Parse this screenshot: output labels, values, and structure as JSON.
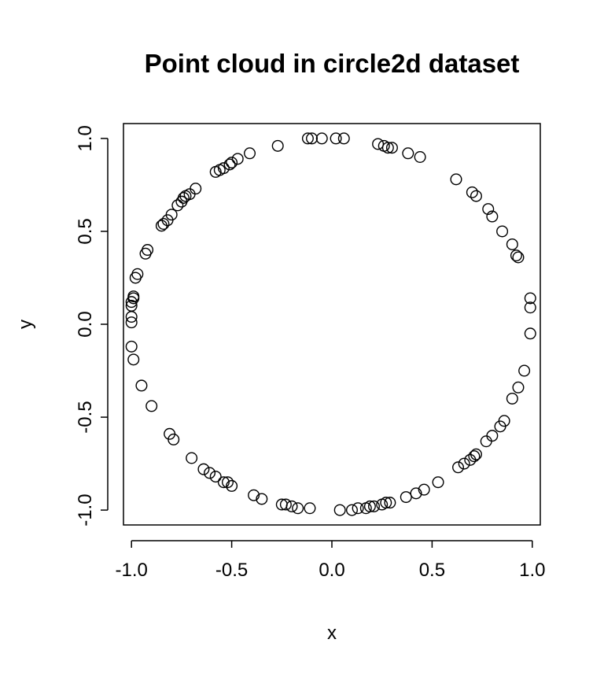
{
  "chart_data": {
    "type": "scatter",
    "title": "Point cloud in circle2d dataset",
    "xlabel": "x",
    "ylabel": "y",
    "xlim": [
      -1.04,
      1.04
    ],
    "ylim": [
      -1.08,
      1.08
    ],
    "xticks": [
      -1.0,
      -0.5,
      0.0,
      0.5,
      1.0
    ],
    "xtick_labels": [
      "-1.0",
      "-0.5",
      "0.0",
      "0.5",
      "1.0"
    ],
    "yticks": [
      -1.0,
      -0.5,
      0.0,
      0.5,
      1.0
    ],
    "ytick_labels": [
      "-1.0",
      "-0.5",
      "0.0",
      "0.5",
      "1.0"
    ],
    "marker": "open-circle",
    "grid": false,
    "points": [
      [
        -0.27,
        0.96
      ],
      [
        -0.12,
        1.0
      ],
      [
        -0.1,
        1.0
      ],
      [
        -0.05,
        1.0
      ],
      [
        0.02,
        1.0
      ],
      [
        0.06,
        1.0
      ],
      [
        0.23,
        0.97
      ],
      [
        0.26,
        0.96
      ],
      [
        0.28,
        0.95
      ],
      [
        0.3,
        0.95
      ],
      [
        0.38,
        0.92
      ],
      [
        0.44,
        0.9
      ],
      [
        -0.41,
        0.92
      ],
      [
        -0.47,
        0.89
      ],
      [
        -0.5,
        0.87
      ],
      [
        -0.51,
        0.86
      ],
      [
        -0.54,
        0.84
      ],
      [
        -0.56,
        0.83
      ],
      [
        -0.58,
        0.82
      ],
      [
        -0.68,
        0.73
      ],
      [
        -0.71,
        0.7
      ],
      [
        -0.73,
        0.69
      ],
      [
        -0.74,
        0.68
      ],
      [
        -0.75,
        0.66
      ],
      [
        -0.77,
        0.64
      ],
      [
        -0.8,
        0.59
      ],
      [
        -0.82,
        0.56
      ],
      [
        -0.84,
        0.54
      ],
      [
        -0.85,
        0.53
      ],
      [
        -0.92,
        0.4
      ],
      [
        -0.93,
        0.38
      ],
      [
        -0.97,
        0.27
      ],
      [
        -0.98,
        0.25
      ],
      [
        -0.99,
        0.15
      ],
      [
        -0.99,
        0.14
      ],
      [
        -1.0,
        0.12
      ],
      [
        -1.0,
        0.1
      ],
      [
        -1.0,
        0.04
      ],
      [
        -1.0,
        0.01
      ],
      [
        -1.0,
        -0.12
      ],
      [
        -0.99,
        -0.19
      ],
      [
        -0.95,
        -0.33
      ],
      [
        -0.9,
        -0.44
      ],
      [
        -0.81,
        -0.59
      ],
      [
        -0.79,
        -0.62
      ],
      [
        -0.7,
        -0.72
      ],
      [
        -0.64,
        -0.78
      ],
      [
        -0.61,
        -0.8
      ],
      [
        -0.58,
        -0.82
      ],
      [
        -0.54,
        -0.85
      ],
      [
        -0.52,
        -0.85
      ],
      [
        -0.5,
        -0.87
      ],
      [
        -0.39,
        -0.92
      ],
      [
        -0.35,
        -0.94
      ],
      [
        -0.25,
        -0.97
      ],
      [
        -0.23,
        -0.97
      ],
      [
        -0.2,
        -0.98
      ],
      [
        -0.17,
        -0.99
      ],
      [
        -0.11,
        -0.99
      ],
      [
        0.04,
        -1.0
      ],
      [
        0.1,
        -1.0
      ],
      [
        0.13,
        -0.99
      ],
      [
        0.17,
        -0.99
      ],
      [
        0.19,
        -0.98
      ],
      [
        0.21,
        -0.98
      ],
      [
        0.25,
        -0.97
      ],
      [
        0.27,
        -0.96
      ],
      [
        0.29,
        -0.96
      ],
      [
        0.37,
        -0.93
      ],
      [
        0.42,
        -0.91
      ],
      [
        0.46,
        -0.89
      ],
      [
        0.53,
        -0.85
      ],
      [
        0.63,
        -0.77
      ],
      [
        0.66,
        -0.75
      ],
      [
        0.69,
        -0.73
      ],
      [
        0.71,
        -0.71
      ],
      [
        0.72,
        -0.7
      ],
      [
        0.77,
        -0.63
      ],
      [
        0.8,
        -0.6
      ],
      [
        0.84,
        -0.55
      ],
      [
        0.86,
        -0.52
      ],
      [
        0.9,
        -0.4
      ],
      [
        0.93,
        -0.34
      ],
      [
        0.96,
        -0.25
      ],
      [
        0.99,
        -0.05
      ],
      [
        0.99,
        0.09
      ],
      [
        0.99,
        0.14
      ],
      [
        0.93,
        0.36
      ],
      [
        0.92,
        0.37
      ],
      [
        0.9,
        0.43
      ],
      [
        0.85,
        0.5
      ],
      [
        0.8,
        0.58
      ],
      [
        0.78,
        0.62
      ],
      [
        0.72,
        0.69
      ],
      [
        0.7,
        0.71
      ],
      [
        0.62,
        0.78
      ]
    ]
  }
}
